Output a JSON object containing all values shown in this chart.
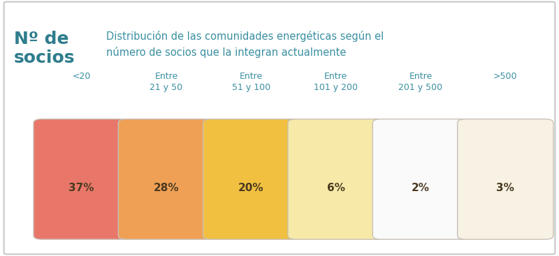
{
  "title_bold": "Nº de\nsocios",
  "title_desc": "Distribución de las comunidades energéticas según el\nnúmero de socios que la integran actualmente",
  "categories": [
    "<20",
    "Entre\n21 y 50",
    "Entre\n51 y 100",
    "Entre\n101 y 200",
    "Entre\n201 y 500",
    ">500"
  ],
  "values": [
    "37%",
    "28%",
    "20%",
    "6%",
    "2%",
    "3%"
  ],
  "bar_colors": [
    "#E8776A",
    "#F0A055",
    "#F2C040",
    "#F7EAA8",
    "#FAFAFA",
    "#F7F2E4"
  ],
  "border_colors": [
    "#C8C0B8",
    "#C8C0B8",
    "#C8C0B8",
    "#C8C0B8",
    "#C8C0B8",
    "#C8C0B8"
  ],
  "bg_color": "#FFFFFF",
  "title_color": "#2E7D8C",
  "desc_color": "#3A8FA0",
  "value_color": "#4A3A20",
  "cat_color": "#3A8FA0",
  "outer_border_color": "#C8C8C8",
  "title_fontsize": 18,
  "desc_fontsize": 10.5,
  "cat_fontsize": 9,
  "val_fontsize": 11
}
